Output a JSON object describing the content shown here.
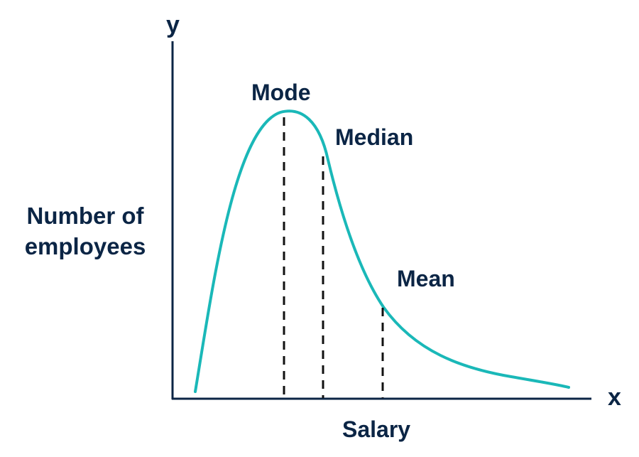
{
  "axes": {
    "y_symbol": "y",
    "x_symbol": "x",
    "y_label_line1": "Number of",
    "y_label_line2": "employees",
    "x_label": "Salary"
  },
  "markers": {
    "mode": "Mode",
    "median": "Median",
    "mean": "Mean"
  },
  "colors": {
    "curve": "#1ab8b8",
    "axis": "#0b2545",
    "text": "#0b2545"
  }
}
